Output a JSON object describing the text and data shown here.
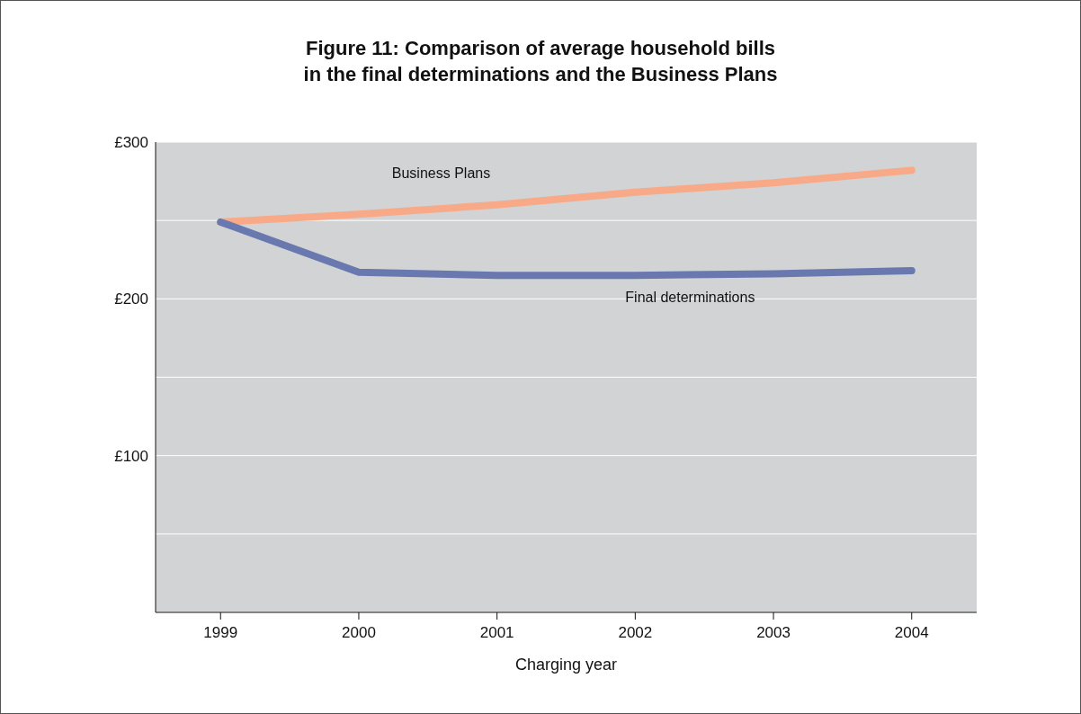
{
  "chart_data": {
    "type": "line",
    "title": "Figure 11: Comparison of average household bills\nin the final determinations and the Business Plans",
    "xlabel": "Charging year",
    "categories": [
      "1999",
      "2000",
      "2001",
      "2002",
      "2003",
      "2004"
    ],
    "series": [
      {
        "name": "Business Plans",
        "color": "#f8a988",
        "values": [
          249,
          254,
          260,
          268,
          274,
          282
        ]
      },
      {
        "name": "Final determinations",
        "color": "#6a78b0",
        "values": [
          249,
          217,
          215,
          215,
          216,
          218
        ]
      }
    ],
    "ylim": [
      0,
      300
    ],
    "yticks": [
      {
        "value": 0,
        "label": null
      },
      {
        "value": 50,
        "label": null
      },
      {
        "value": 100,
        "label": "£100"
      },
      {
        "value": 150,
        "label": null
      },
      {
        "value": 200,
        "label": "£200"
      },
      {
        "value": 250,
        "label": null
      },
      {
        "value": 300,
        "label": "£300"
      }
    ],
    "grid": "y",
    "marker": "none",
    "line_style": "solid"
  }
}
